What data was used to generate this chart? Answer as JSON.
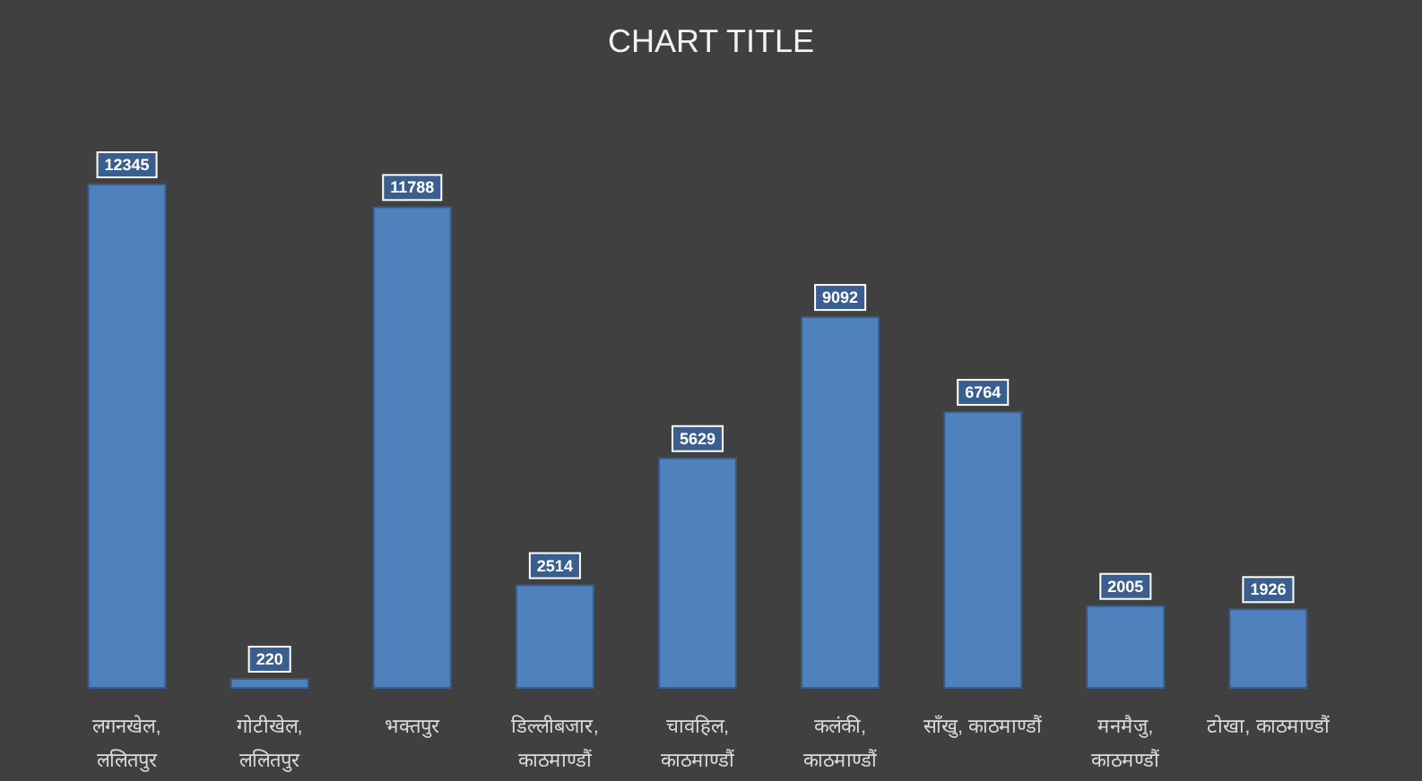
{
  "chart_data": {
    "type": "bar",
    "title": "CHART TITLE",
    "categories": [
      "लगनखेल, ललितपुर",
      "गोटीखेल, ललितपुर",
      "भक्तपुर",
      "डिल्लीबजार, काठमाण्डौं",
      "चावहिल, काठमाण्डौं",
      "कलंकी, काठमाण्डौं",
      "साँखु, काठमाण्डौं",
      "मनमैजु, काठमण्डौं",
      "टोखा, काठमाण्डौं"
    ],
    "values": [
      12345,
      220,
      11788,
      2514,
      5629,
      9092,
      6764,
      2005,
      1926
    ],
    "color": "#4f81bd",
    "data_labels": true
  }
}
